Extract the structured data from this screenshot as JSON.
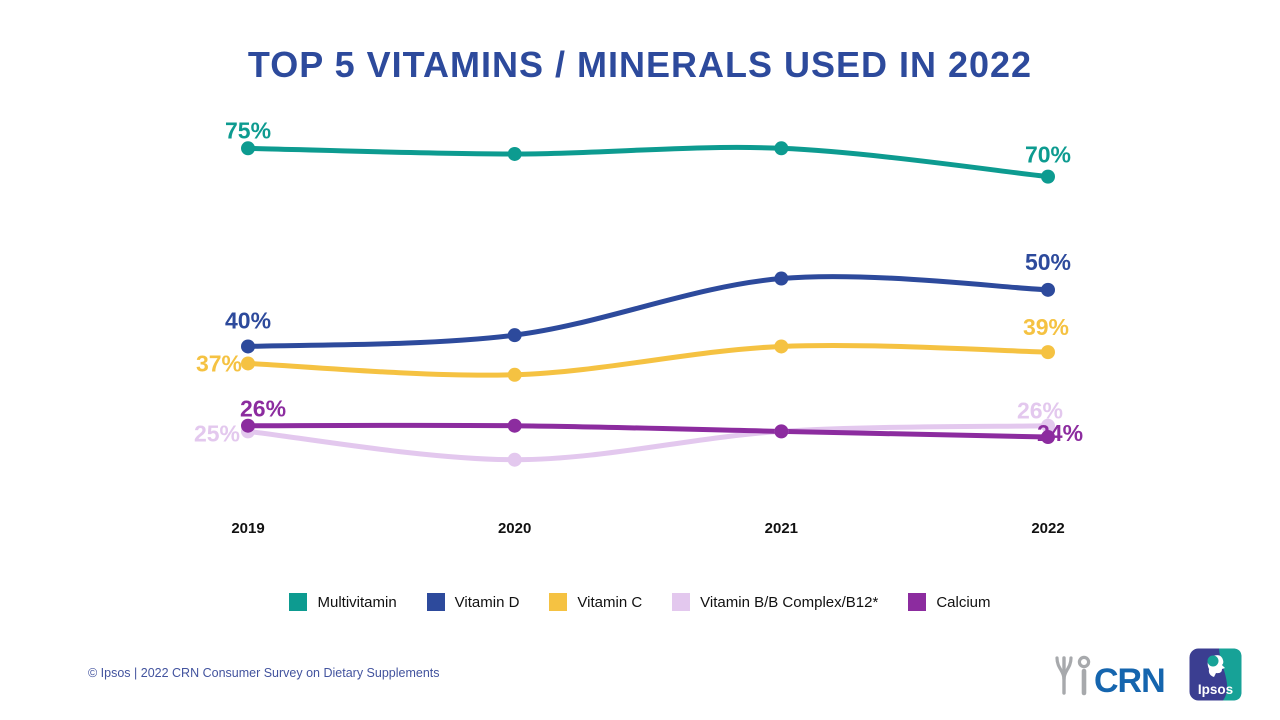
{
  "title": "TOP 5 VITAMINS / MINERALS USED IN 2022",
  "chart_data": {
    "type": "line",
    "categories": [
      "2019",
      "2020",
      "2021",
      "2022"
    ],
    "series": [
      {
        "name": "Multivitamin",
        "color": "#0D9B90",
        "values": [
          75,
          74,
          75,
          70
        ],
        "first_label": "75%",
        "last_label": "70%"
      },
      {
        "name": "Vitamin D",
        "color": "#2D4A9C",
        "values": [
          40,
          42,
          52,
          50
        ],
        "first_label": "40%",
        "last_label": "50%"
      },
      {
        "name": "Vitamin C",
        "color": "#F5C242",
        "values": [
          37,
          35,
          40,
          39
        ],
        "first_label": "37%",
        "last_label": "39%"
      },
      {
        "name": "Vitamin B/B Complex/B12*",
        "color": "#E3C8EE",
        "values": [
          25,
          20,
          25,
          26
        ],
        "first_label": "25%",
        "last_label": "26%"
      },
      {
        "name": "Calcium",
        "color": "#8C2C9F",
        "values": [
          26,
          26,
          25,
          24
        ],
        "first_label": "26%",
        "last_label": "24%"
      }
    ],
    "title": "TOP 5 VITAMINS / MINERALS USED IN 2022",
    "xlabel": "",
    "ylabel": "",
    "ylim": [
      15,
      80
    ],
    "grid": false,
    "legend_position": "bottom",
    "labels_shown": "first and last data point of each series only"
  },
  "footer": {
    "source": "© Ipsos | 2022 CRN Consumer Survey on Dietary Supplements"
  },
  "logos": {
    "crn": "CRN",
    "ipsos": "Ipsos"
  },
  "colors": {
    "title_text": "#2D4A9C",
    "axis_text": "#111111",
    "footer_text": "#42539E",
    "crn_blue": "#1565AE",
    "crn_gray": "#A7A9AC",
    "ipsos_indigo": "#3B3E91",
    "ipsos_teal": "#17A297"
  }
}
